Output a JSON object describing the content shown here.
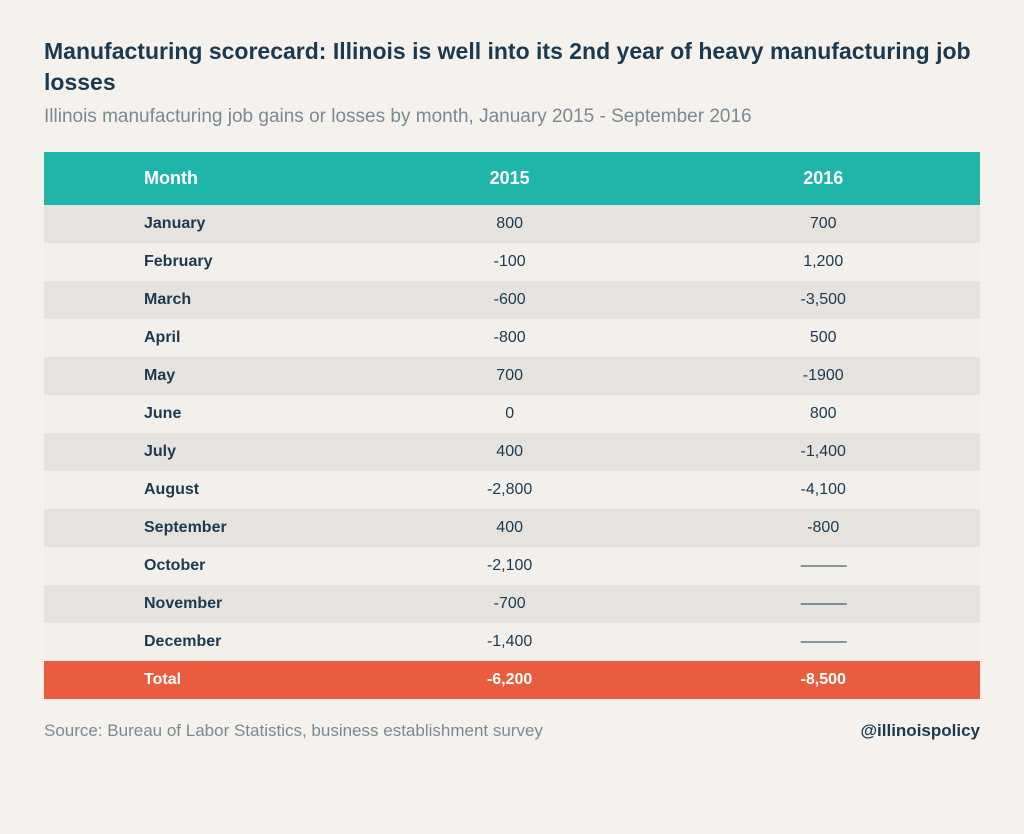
{
  "title": "Manufacturing scorecard: Illinois is well into its 2nd year of heavy manufacturing job losses",
  "subtitle": "Illinois manufacturing job gains or losses by month, January 2015 - September 2016",
  "source": "Source: Bureau of Labor Statistics, business establishment survey",
  "handle": "@illinoispolicy",
  "table": {
    "type": "table",
    "columns": [
      "Month",
      "2015",
      "2016"
    ],
    "header_bg": "#1fb5a8",
    "header_text_color": "#ffffff",
    "row_odd_bg": "#e6e3de",
    "row_even_bg": "#f3f0eb",
    "total_bg": "#e85d3d",
    "total_text_color": "#ffffff",
    "text_color": "#1a3a52",
    "dash": "———",
    "rows": [
      {
        "month": "January",
        "y2015": "800",
        "y2016": "700"
      },
      {
        "month": "February",
        "y2015": "-100",
        "y2016": "1,200"
      },
      {
        "month": "March",
        "y2015": "-600",
        "y2016": "-3,500"
      },
      {
        "month": "April",
        "y2015": "-800",
        "y2016": "500"
      },
      {
        "month": "May",
        "y2015": "700",
        "y2016": "-1900"
      },
      {
        "month": "June",
        "y2015": "0",
        "y2016": "800"
      },
      {
        "month": "July",
        "y2015": "400",
        "y2016": "-1,400"
      },
      {
        "month": "August",
        "y2015": "-2,800",
        "y2016": "-4,100"
      },
      {
        "month": "September",
        "y2015": "400",
        "y2016": "-800"
      },
      {
        "month": "October",
        "y2015": "-2,100",
        "y2016": "———"
      },
      {
        "month": "November",
        "y2015": "-700",
        "y2016": "———"
      },
      {
        "month": "December",
        "y2015": "-1,400",
        "y2016": "———"
      }
    ],
    "total": {
      "label": "Total",
      "y2015": "-6,200",
      "y2016": "-8,500"
    }
  },
  "styling": {
    "page_bg": "#f5f2ed",
    "title_color": "#1a3a52",
    "subtitle_color": "#7a8a92",
    "title_fontsize": 23,
    "subtitle_fontsize": 19,
    "cell_fontsize": 16,
    "header_fontsize": 18
  }
}
